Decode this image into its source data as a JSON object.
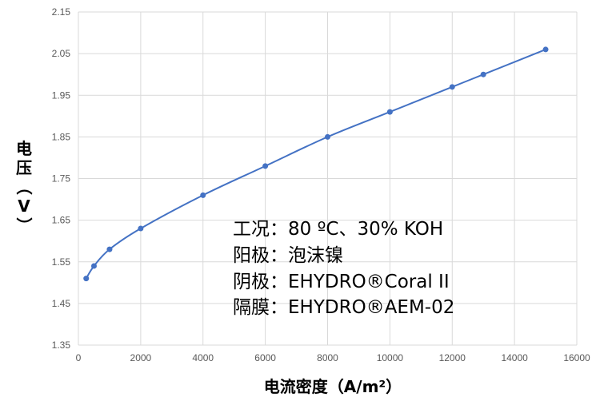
{
  "chart_data": {
    "type": "line",
    "xlabel": "电流密度（A/m²）",
    "ylabel": "电压（V）",
    "xlim": [
      0,
      16000
    ],
    "ylim": [
      1.35,
      2.15
    ],
    "xticks": [
      0,
      2000,
      4000,
      6000,
      8000,
      10000,
      12000,
      14000,
      16000
    ],
    "yticks": [
      1.35,
      1.45,
      1.55,
      1.65,
      1.75,
      1.85,
      1.95,
      2.05,
      2.15
    ],
    "ytick_labels": [
      "1.35",
      "1.45",
      "1.55",
      "1.65",
      "1.75",
      "1.85",
      "1.95",
      "2.05",
      "2.15"
    ],
    "grid": true,
    "smooth": true,
    "marker": "circle",
    "color": "#4472C4",
    "series": [
      {
        "x": [
          250,
          500,
          1000,
          2000,
          4000,
          6000,
          8000,
          10000,
          12000,
          13000,
          15000
        ],
        "values": [
          1.51,
          1.54,
          1.58,
          1.63,
          1.71,
          1.78,
          1.85,
          1.91,
          1.97,
          2.0,
          2.06
        ]
      }
    ],
    "annotations": [
      "工况：80 ºC、30% KOH",
      "阳极：泡沫镍",
      "阴极：EHYDRO®Coral II",
      "隔膜：EHYDRO®AEM-02"
    ]
  }
}
